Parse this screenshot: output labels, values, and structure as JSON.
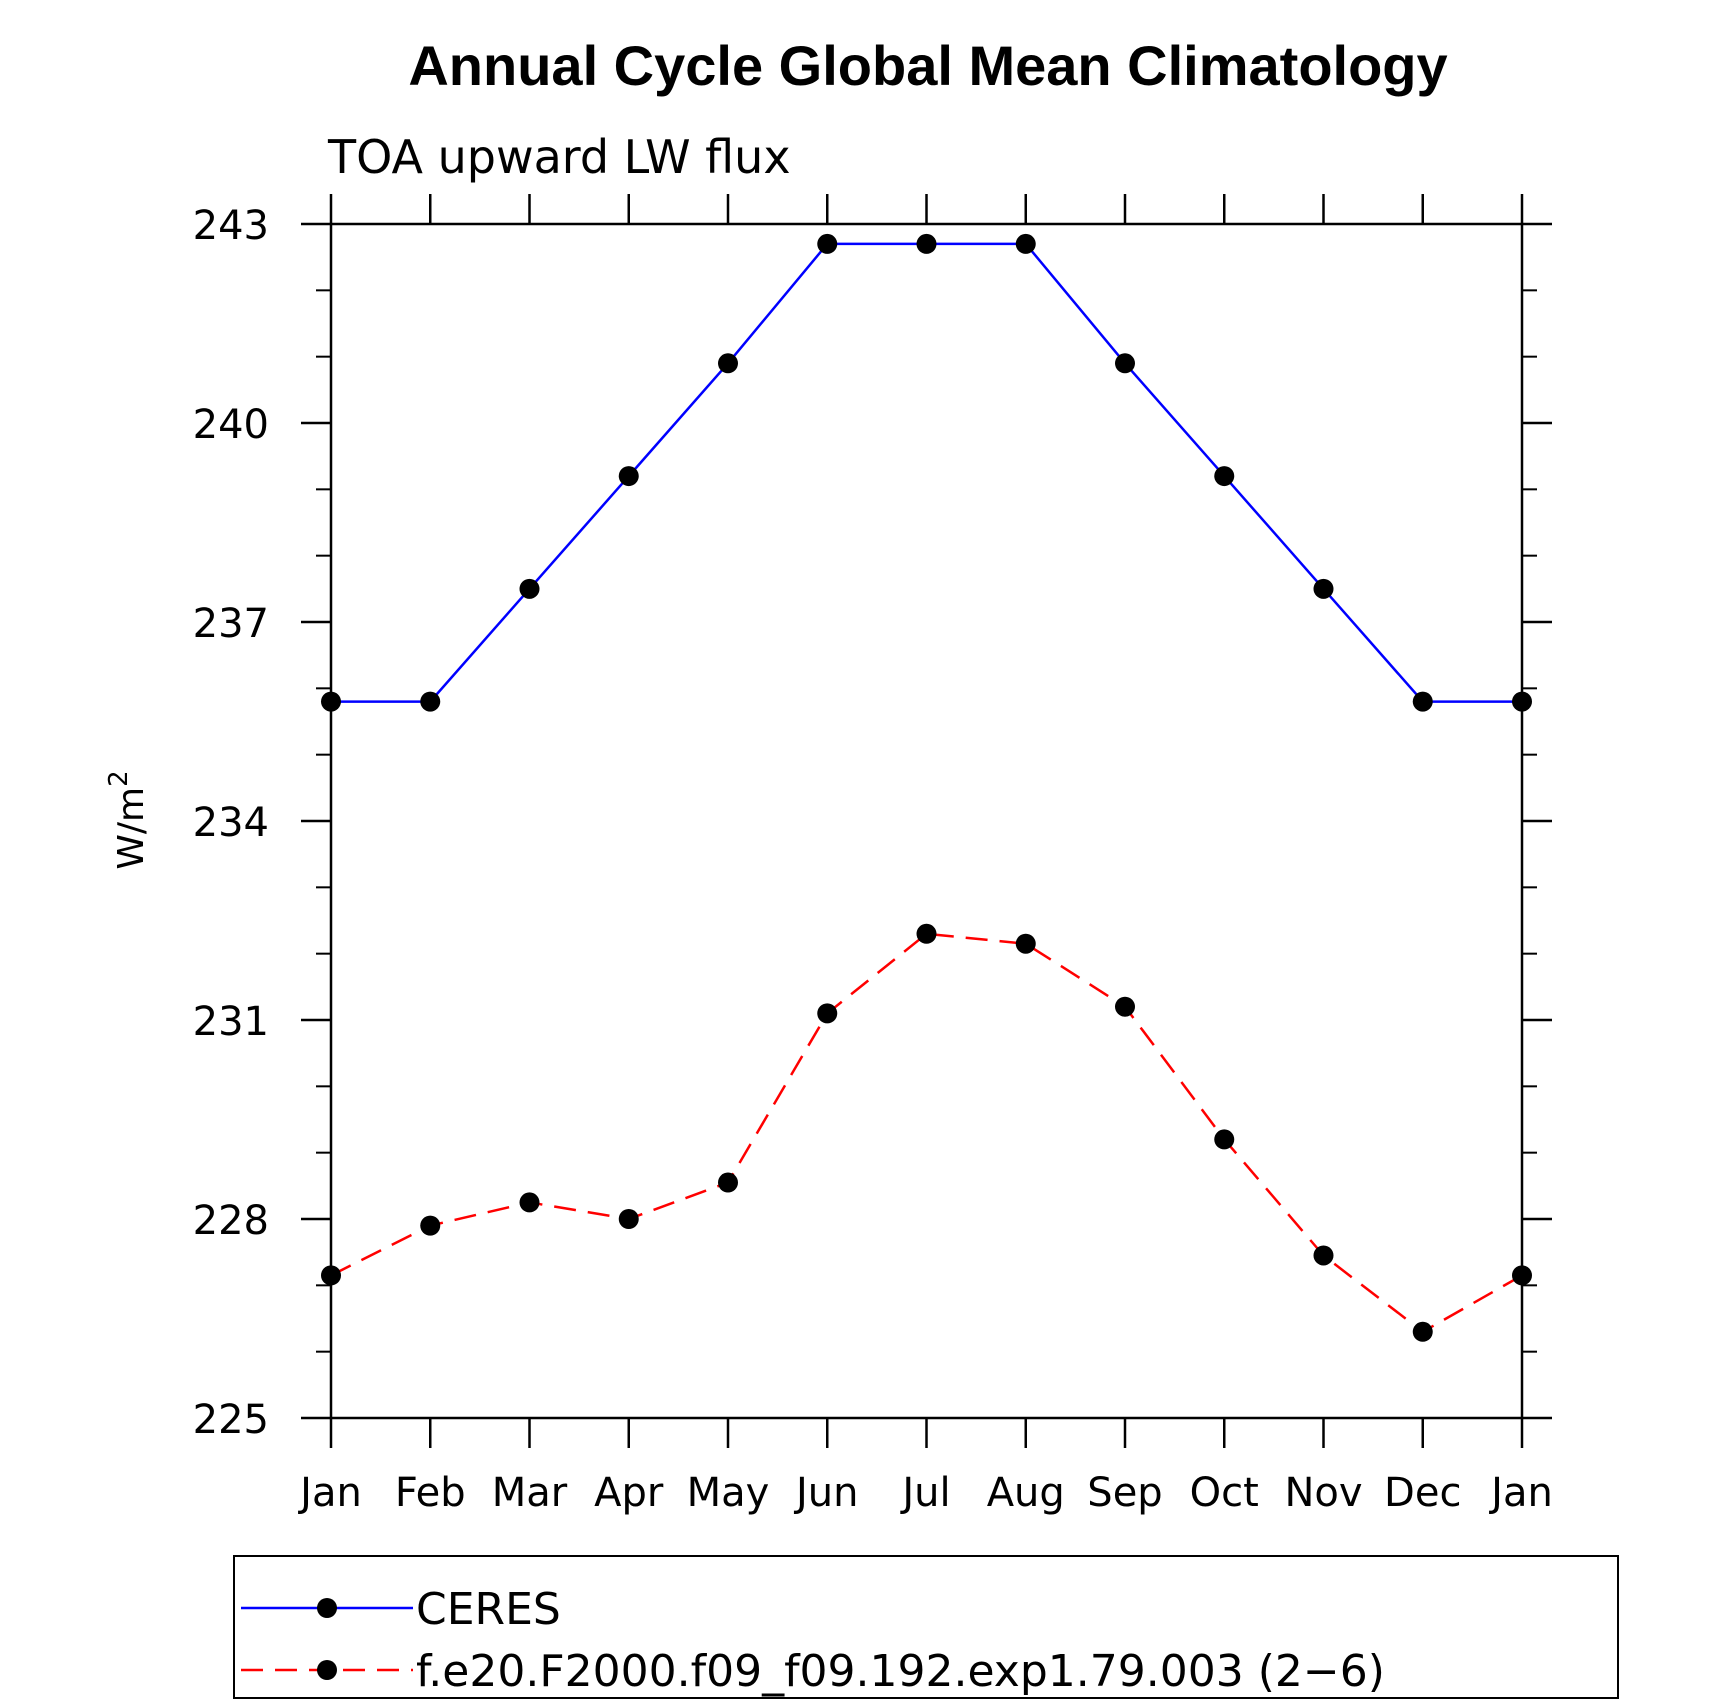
{
  "chart_data": {
    "type": "line",
    "title": "Annual Cycle Global Mean Climatology",
    "subtitle": "TOA upward LW flux",
    "xlabel": "",
    "ylabel": "W/m",
    "ylabel_superscript": "2",
    "ylim": [
      225,
      243
    ],
    "yticks": [
      225,
      228,
      231,
      234,
      237,
      240,
      243
    ],
    "categories": [
      "Jan",
      "Feb",
      "Mar",
      "Apr",
      "May",
      "Jun",
      "Jul",
      "Aug",
      "Sep",
      "Oct",
      "Nov",
      "Dec",
      "Jan"
    ],
    "series": [
      {
        "name": "CERES",
        "color": "#0000ff",
        "dash": "solid",
        "marker": "filled-circle",
        "values": [
          235.8,
          235.8,
          237.5,
          239.2,
          240.9,
          242.7,
          242.7,
          242.7,
          240.9,
          239.2,
          237.5,
          235.8,
          235.8
        ]
      },
      {
        "name": "f.e20.F2000.f09_f09.192.exp1.79.003 (2−6)",
        "color": "#ff0000",
        "dash": "dashed",
        "marker": "filled-circle",
        "values": [
          227.15,
          227.9,
          228.25,
          228.0,
          228.55,
          231.1,
          232.3,
          232.15,
          231.2,
          229.2,
          227.45,
          226.3,
          227.15
        ]
      }
    ],
    "legend_position": "bottom"
  }
}
